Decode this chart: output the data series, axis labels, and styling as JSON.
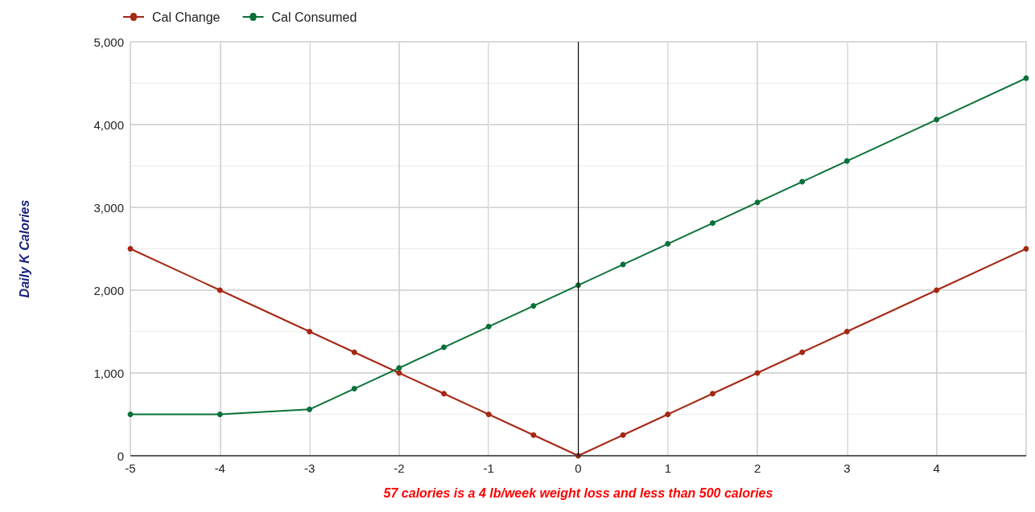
{
  "chart_data": {
    "type": "line",
    "xlabel": "57 calories is a 4 lb/week weight loss and less than 500 calories",
    "ylabel": "Daily K Calories",
    "x": [
      -5,
      -4,
      -3,
      -2.5,
      -2,
      -1.5,
      -1,
      -0.5,
      0,
      0.5,
      1,
      1.5,
      2,
      2.5,
      3,
      4,
      5
    ],
    "series": [
      {
        "name": "Cal Change",
        "color": "#a52714",
        "values": [
          2500,
          2000,
          1500,
          1250,
          1000,
          750,
          500,
          250,
          0,
          250,
          500,
          750,
          1000,
          1250,
          1500,
          2000,
          2500
        ]
      },
      {
        "name": "Cal Consumed",
        "color": "#097138",
        "values": [
          500,
          500,
          560,
          810,
          1060,
          1310,
          1560,
          1810,
          2060,
          2310,
          2560,
          2810,
          3060,
          3310,
          3560,
          4060,
          4560
        ]
      }
    ],
    "xlim": [
      -5,
      5
    ],
    "xticks": [
      -5,
      -4,
      -3,
      -2,
      -1,
      0,
      1,
      2,
      3,
      4,
      {
        "value": 5,
        "label": null
      }
    ],
    "ylim": [
      0,
      5000
    ],
    "yticks": [
      0,
      {
        "value": 1000,
        "label": "1,000"
      },
      {
        "value": 2000,
        "label": "2,000"
      },
      {
        "value": 3000,
        "label": "3,000"
      },
      {
        "value": 4000,
        "label": "4,000"
      },
      {
        "value": 5000,
        "label": "5,000"
      }
    ],
    "ref_lines": [
      {
        "axis": "x",
        "value": 0,
        "color": "#000000"
      }
    ],
    "grid": true,
    "legend": "top left",
    "marker": "circle",
    "line_style": "solid"
  }
}
